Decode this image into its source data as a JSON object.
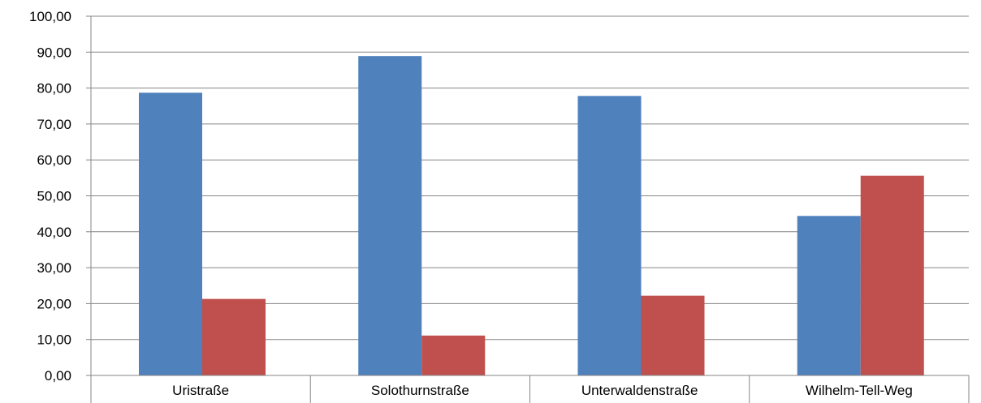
{
  "chart_data": {
    "type": "bar",
    "title": "",
    "xlabel": "",
    "ylabel": "",
    "categories": [
      "Uristraße",
      "Solothurnstraße",
      "Unterwaldenstraße",
      "Wilhelm-Tell-Weg"
    ],
    "series": [
      {
        "color": "#4F81BD",
        "values": [
          78.7,
          88.9,
          77.8,
          44.4
        ]
      },
      {
        "color": "#C0504D",
        "values": [
          21.3,
          11.1,
          22.2,
          55.6
        ]
      }
    ],
    "ylim": [
      0,
      100
    ],
    "y_ticks": [
      "0,00",
      "10,00",
      "20,00",
      "30,00",
      "40,00",
      "50,00",
      "60,00",
      "70,00",
      "80,00",
      "90,00",
      "100,00"
    ],
    "grid": true,
    "legend": "none"
  }
}
